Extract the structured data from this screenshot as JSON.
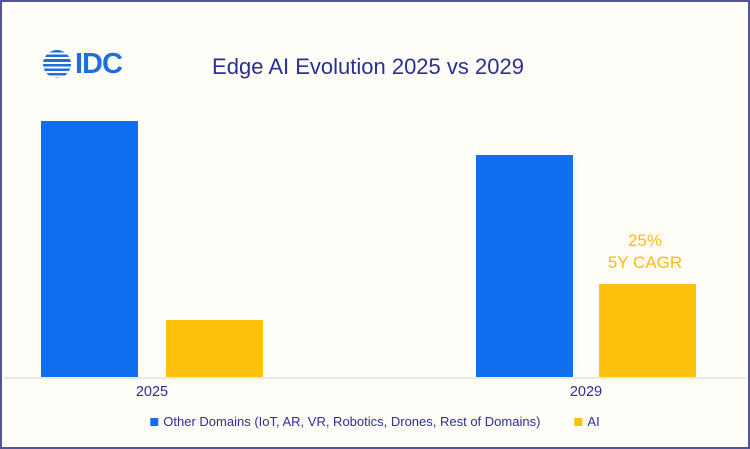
{
  "header": {
    "logo_text": "IDC",
    "title": "Edge AI Evolution 2025 vs 2029"
  },
  "chart_data": {
    "type": "bar",
    "title": "Edge AI Evolution 2025 vs 2029",
    "categories": [
      "2025",
      "2029"
    ],
    "series": [
      {
        "name": "Other Domains (IoT, AR, VR, Robotics, Drones, Rest of Domains)",
        "color": "#0F6FEF",
        "values": [
          100,
          87
        ]
      },
      {
        "name": "AI",
        "color": "#FDC10D",
        "values": [
          23,
          37
        ]
      }
    ],
    "value_axis": "none shown; values are relative bar heights, max bar = 100",
    "ylim": [
      0,
      100
    ],
    "grid": false,
    "legend_position": "bottom-center",
    "annotation": {
      "line1": "25%",
      "line2": "5Y CAGR",
      "attached_to": "AI 2029 bar",
      "color": "#FFB81A"
    }
  },
  "legend": {
    "items": [
      {
        "label": "Other Domains (IoT, AR, VR, Robotics, Drones, Rest of Domains)",
        "color": "#0F6FEF"
      },
      {
        "label": "AI",
        "color": "#FDC10D"
      }
    ]
  },
  "colors": {
    "bar_blue": "#0F6FEF",
    "bar_yellow": "#FDC10D",
    "text_navy": "#2B2F96",
    "annotation_gold": "#FFB81A",
    "frame_border": "#54549C",
    "background": "#FFFDF8",
    "baseline_gray": "#E9E9E5",
    "logo_blue": "#1E6EDE"
  }
}
